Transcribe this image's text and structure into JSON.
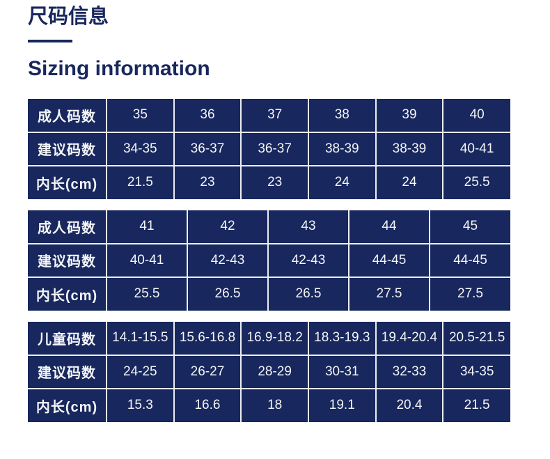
{
  "header": {
    "title_zh": "尺码信息",
    "title_en": "Sizing information"
  },
  "colors": {
    "navy": "#18275d",
    "grid_line": "#eceef2",
    "cell_text": "#f4f5f8",
    "page_bg": "#ffffff"
  },
  "tables": [
    {
      "name": "adult-sizes-35-40",
      "rows": [
        {
          "label": "成人码数",
          "cells": [
            "35",
            "36",
            "37",
            "38",
            "39",
            "40"
          ]
        },
        {
          "label": "建议码数",
          "cells": [
            "34-35",
            "36-37",
            "36-37",
            "38-39",
            "38-39",
            "40-41"
          ]
        },
        {
          "label": "内长(cm)",
          "cells": [
            "21.5",
            "23",
            "23",
            "24",
            "24",
            "25.5"
          ]
        }
      ]
    },
    {
      "name": "adult-sizes-41-45",
      "rows": [
        {
          "label": "成人码数",
          "cells": [
            "41",
            "42",
            "43",
            "44",
            "45"
          ]
        },
        {
          "label": "建议码数",
          "cells": [
            "40-41",
            "42-43",
            "42-43",
            "44-45",
            "44-45"
          ]
        },
        {
          "label": "内长(cm)",
          "cells": [
            "25.5",
            "26.5",
            "26.5",
            "27.5",
            "27.5"
          ]
        }
      ]
    },
    {
      "name": "kids-sizes",
      "rows": [
        {
          "label": "儿童码数",
          "cells": [
            "14.1-15.5",
            "15.6-16.8",
            "16.9-18.2",
            "18.3-19.3",
            "19.4-20.4",
            "20.5-21.5"
          ]
        },
        {
          "label": "建议码数",
          "cells": [
            "24-25",
            "26-27",
            "28-29",
            "30-31",
            "32-33",
            "34-35"
          ]
        },
        {
          "label": "内长(cm)",
          "cells": [
            "15.3",
            "16.6",
            "18",
            "19.1",
            "20.4",
            "21.5"
          ]
        }
      ]
    }
  ]
}
